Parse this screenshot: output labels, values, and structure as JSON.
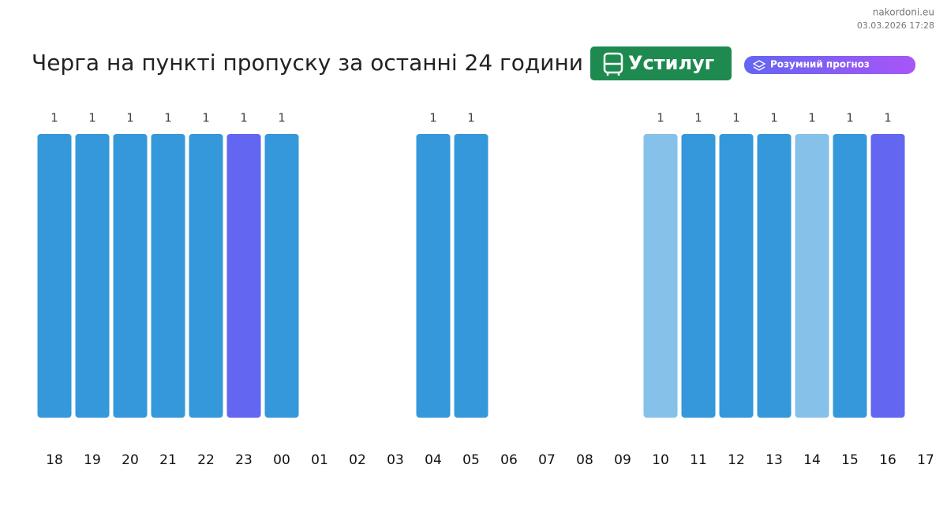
{
  "header": {
    "source": "nakordoni.eu",
    "timestamp": "03.03.2026 17:28",
    "station": "Устилуг",
    "badge": "Розумний прогноз"
  },
  "chart_data": {
    "type": "bar",
    "title": "Черга на пункті пропуску за останні 24 години",
    "categories": [
      "18",
      "19",
      "20",
      "21",
      "22",
      "23",
      "00",
      "01",
      "02",
      "03",
      "04",
      "05",
      "06",
      "07",
      "08",
      "09",
      "10",
      "11",
      "12",
      "13",
      "14",
      "15",
      "16",
      "17"
    ],
    "values": [
      1,
      1,
      1,
      1,
      1,
      1,
      1,
      null,
      null,
      null,
      1,
      1,
      null,
      null,
      null,
      null,
      1,
      1,
      1,
      1,
      1,
      1,
      1,
      null
    ],
    "colors": [
      "#3498db",
      "#3498db",
      "#3498db",
      "#3498db",
      "#3498db",
      "#6366f1",
      "#3498db",
      null,
      null,
      null,
      "#3498db",
      "#3498db",
      null,
      null,
      null,
      null,
      "#85c1e9",
      "#3498db",
      "#3498db",
      "#3498db",
      "#85c1e9",
      "#3498db",
      "#6366f1",
      null
    ]
  }
}
